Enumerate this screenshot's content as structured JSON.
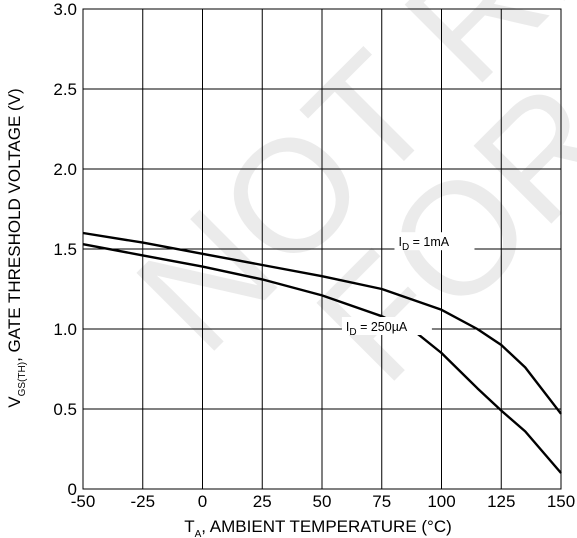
{
  "chart_data": {
    "type": "line",
    "title": "",
    "xlabel": {
      "main": "T",
      "sub": "A",
      "rest": ", AMBIENT TEMPERATURE (°C)"
    },
    "ylabel": {
      "main": "V",
      "sub": "GS(TH)",
      "rest": ", GATE THRESHOLD VOLTAGE (V)"
    },
    "xlim": [
      -50,
      150
    ],
    "ylim": [
      0,
      3.0
    ],
    "x_ticks": [
      "-50",
      "-25",
      "0",
      "25",
      "50",
      "75",
      "100",
      "125",
      "150"
    ],
    "y_ticks": [
      "0",
      "0.5",
      "1.0",
      "1.5",
      "2.0",
      "2.5",
      "3.0"
    ],
    "grid": true,
    "series": [
      {
        "name": {
          "main": "I",
          "sub": "D",
          "rest": " = 1mA"
        },
        "x": [
          -50,
          -25,
          0,
          25,
          50,
          75,
          100,
          115,
          125,
          135,
          150
        ],
        "y": [
          1.6,
          1.54,
          1.47,
          1.4,
          1.33,
          1.25,
          1.12,
          1.0,
          0.9,
          0.76,
          0.47
        ]
      },
      {
        "name": {
          "main": "I",
          "sub": "D",
          "rest": " = 250µA"
        },
        "x": [
          -50,
          -25,
          0,
          25,
          50,
          75,
          90,
          100,
          115,
          125,
          135,
          150
        ],
        "y": [
          1.53,
          1.46,
          1.39,
          1.31,
          1.21,
          1.08,
          0.97,
          0.85,
          0.63,
          0.49,
          0.36,
          0.1
        ]
      }
    ],
    "watermark": [
      "NOT RE",
      "FOR"
    ]
  }
}
